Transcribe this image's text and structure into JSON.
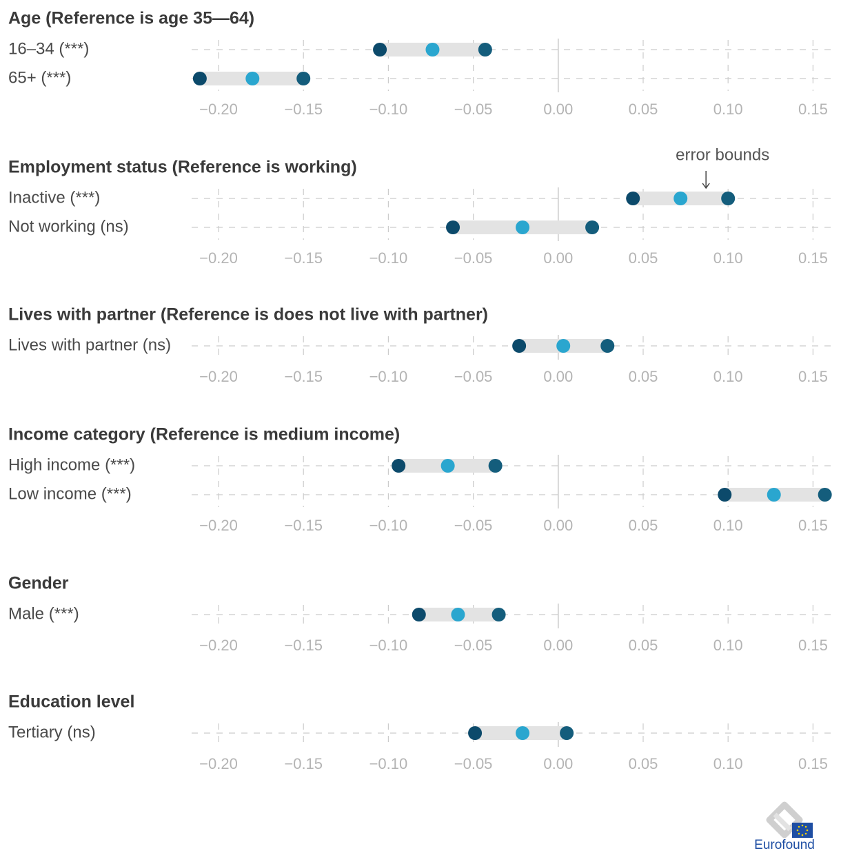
{
  "chart_data": {
    "type": "dot-range",
    "xlim": [
      -0.215,
      0.16
    ],
    "ticks": [
      -0.2,
      -0.15,
      -0.1,
      -0.05,
      0.0,
      0.05,
      0.1,
      0.15
    ],
    "tick_labels": [
      "−0.20",
      "−0.15",
      "−0.10",
      "−0.05",
      "0.00",
      "0.05",
      "0.10",
      "0.15"
    ],
    "colors": {
      "bound": "#0c4a6b",
      "estimate": "#2aa6cf",
      "band": "#e3e3e3",
      "grid": "#cccccc",
      "zero": "#c8c8c8"
    },
    "annotation": {
      "text": "error bounds",
      "target_group": 1,
      "target_row": 0,
      "target_value": 0.087
    },
    "groups": [
      {
        "title": "Age (Reference is age 35—64)",
        "rows": [
          {
            "label": "16–34 (***)",
            "lower": -0.105,
            "estimate": -0.074,
            "upper": -0.043
          },
          {
            "label": "65+ (***)",
            "lower": -0.211,
            "estimate": -0.18,
            "upper": -0.15
          }
        ]
      },
      {
        "title": "Employment status (Reference is working)",
        "rows": [
          {
            "label": "Inactive (***)",
            "lower": 0.044,
            "estimate": 0.072,
            "upper": 0.1
          },
          {
            "label": "Not working (ns)",
            "lower": -0.062,
            "estimate": -0.021,
            "upper": 0.02
          }
        ]
      },
      {
        "title": "Lives with partner (Reference is does not live with partner)",
        "rows": [
          {
            "label": "Lives with partner (ns)",
            "lower": -0.023,
            "estimate": 0.003,
            "upper": 0.029
          }
        ]
      },
      {
        "title": "Income category (Reference is medium income)",
        "rows": [
          {
            "label": "High income (***)",
            "lower": -0.094,
            "estimate": -0.065,
            "upper": -0.037
          },
          {
            "label": "Low income (***)",
            "lower": 0.098,
            "estimate": 0.127,
            "upper": 0.157
          }
        ]
      },
      {
        "title": "Gender",
        "rows": [
          {
            "label": "Male (***)",
            "lower": -0.082,
            "estimate": -0.059,
            "upper": -0.035
          }
        ]
      },
      {
        "title": "Education level",
        "rows": [
          {
            "label": "Tertiary (ns)",
            "lower": -0.049,
            "estimate": -0.021,
            "upper": 0.005
          }
        ]
      }
    ]
  },
  "branding": {
    "logo_text": "Eurofound"
  }
}
